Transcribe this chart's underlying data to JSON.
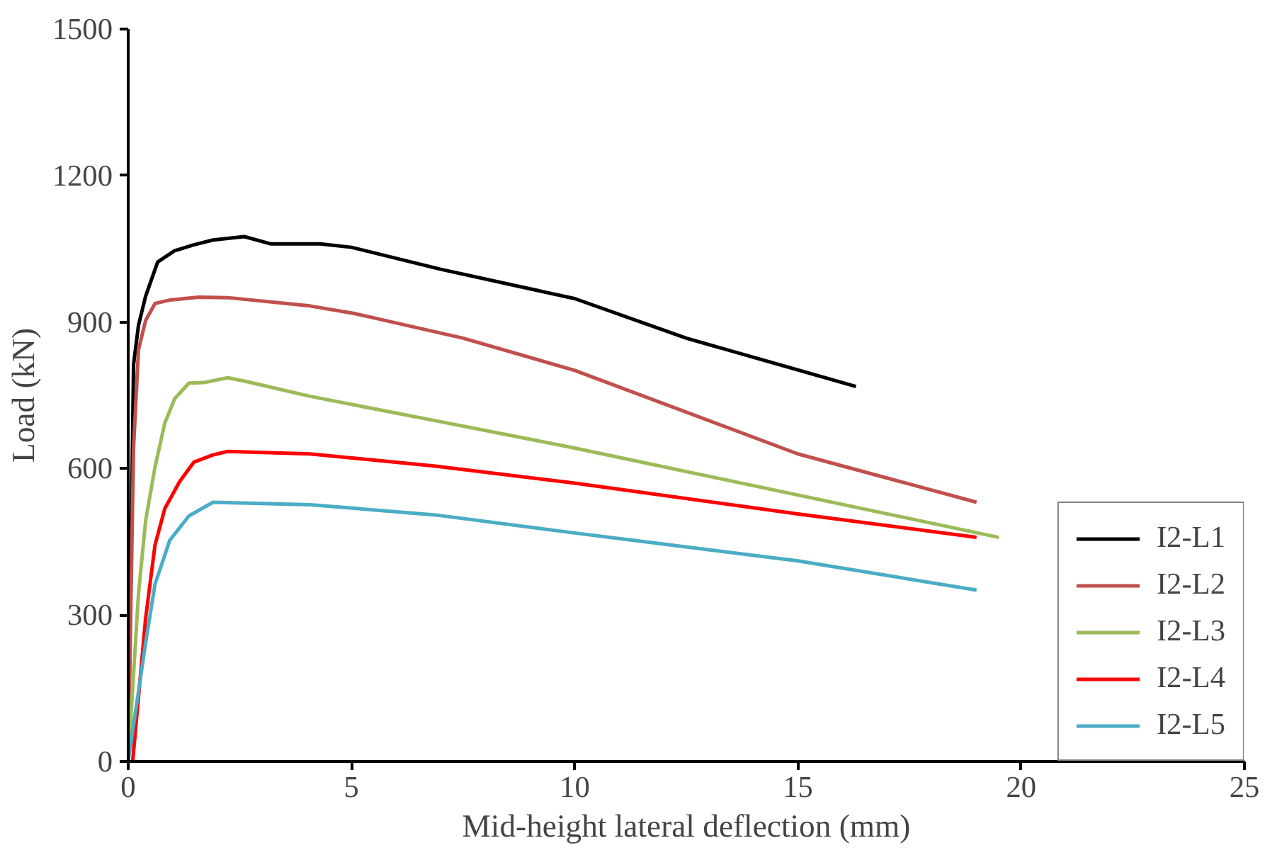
{
  "chart_data": {
    "type": "line",
    "xlabel": "Mid-height lateral deflection (mm)",
    "ylabel": "Load (kN)",
    "xlim": [
      0,
      25
    ],
    "ylim": [
      0,
      1500
    ],
    "xticks": [
      0,
      5,
      10,
      15,
      20,
      25
    ],
    "yticks": [
      0,
      300,
      600,
      900,
      1200,
      1500
    ],
    "grid": false,
    "legend": "bottom right",
    "marker": "none",
    "line_style": "solid",
    "series": [
      {
        "name": "I2-L1",
        "color": "#000000",
        "x": [
          0,
          0.12,
          0.23,
          0.39,
          0.66,
          1.04,
          1.47,
          1.9,
          2.6,
          3.2,
          4.3,
          5.0,
          7.0,
          10.0,
          12.5,
          16.3
        ],
        "values": [
          0,
          813,
          893,
          953,
          1023,
          1046,
          1058,
          1068,
          1075,
          1060,
          1060,
          1053,
          1008,
          948,
          867,
          768
        ]
      },
      {
        "name": "I2-L2",
        "color": "#c0504d",
        "x": [
          0,
          0.12,
          0.23,
          0.39,
          0.6,
          0.93,
          1.58,
          2.23,
          4.07,
          5.04,
          7.5,
          10,
          15,
          19
        ],
        "values": [
          0,
          643,
          843,
          903,
          938,
          945,
          951,
          950,
          933,
          918,
          867,
          801,
          630,
          531
        ]
      },
      {
        "name": "I2-L3",
        "color": "#9bbb59",
        "x": [
          0,
          0.23,
          0.39,
          0.6,
          0.82,
          1.04,
          1.36,
          1.69,
          2.23,
          2.66,
          4.07,
          6.88,
          10,
          19.5
        ],
        "values": [
          0,
          343,
          493,
          603,
          693,
          743,
          775,
          776,
          786,
          778,
          748,
          698,
          642,
          459
        ]
      },
      {
        "name": "I2-L4",
        "color": "#ff0000",
        "x": [
          0.1,
          0.39,
          0.6,
          0.82,
          1.15,
          1.47,
          1.9,
          2.23,
          4.07,
          6.88,
          10,
          15,
          19
        ],
        "values": [
          0,
          293,
          443,
          518,
          573,
          613,
          628,
          635,
          630,
          605,
          570,
          507,
          459
        ]
      },
      {
        "name": "I2-L5",
        "color": "#4bacc6",
        "x": [
          0,
          0.39,
          0.6,
          0.93,
          1.36,
          1.9,
          4.07,
          6.88,
          10,
          15,
          19
        ],
        "values": [
          0,
          243,
          363,
          453,
          503,
          531,
          526,
          505,
          468,
          411,
          351
        ]
      }
    ]
  }
}
